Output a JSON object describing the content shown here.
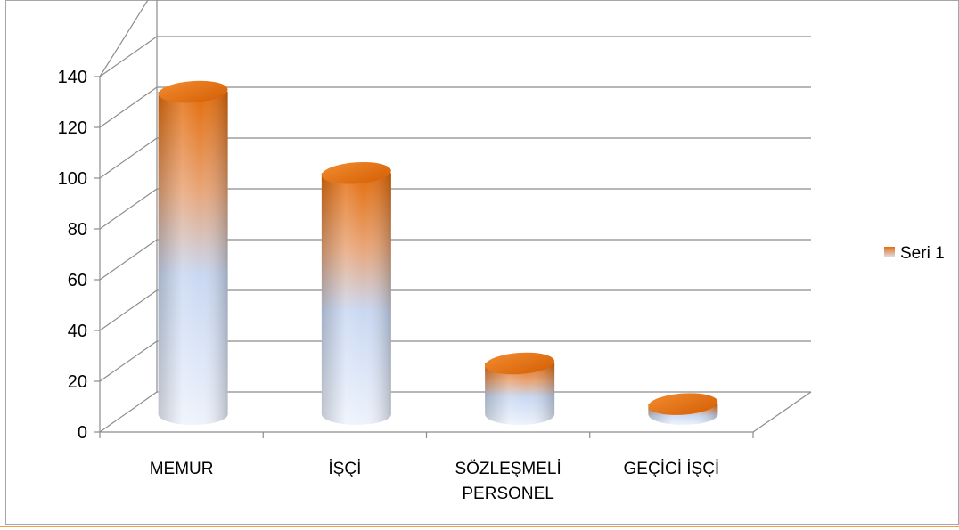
{
  "chart_data": {
    "type": "bar",
    "style": "3d-cylinder",
    "categories": [
      [
        "MEMUR"
      ],
      [
        "İŞÇİ"
      ],
      [
        "SÖZLEŞMELİ",
        "PERSONEL"
      ],
      [
        "GEÇİCİ İŞÇİ"
      ]
    ],
    "series": [
      {
        "name": "Seri 1",
        "values": [
          127,
          95,
          20,
          4
        ]
      }
    ],
    "yticks": [
      "0",
      "20",
      "40",
      "60",
      "80",
      "100",
      "120",
      "140"
    ],
    "ylim": [
      0,
      140
    ],
    "grid": true,
    "legend_position": "right",
    "colors": {
      "top": "#e46c0a",
      "bottom": "#dce6f8",
      "grid": "#8c8c8c",
      "frame": "#a6a6a6"
    }
  }
}
